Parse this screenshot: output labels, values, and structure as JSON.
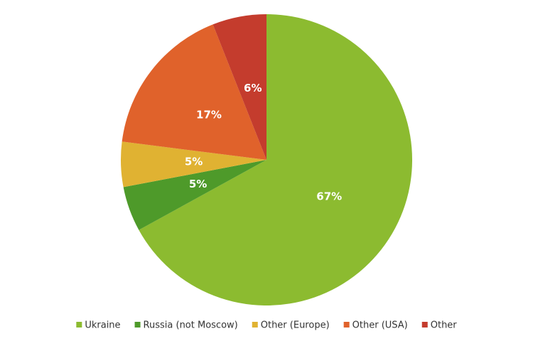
{
  "chart_data": {
    "type": "pie",
    "categories": [
      "Ukraine",
      "Russia (not Moscow)",
      "Other (Europe)",
      "Other (USA)",
      "Other"
    ],
    "values": [
      67,
      5,
      5,
      17,
      6
    ],
    "value_labels": [
      "67%",
      "5%",
      "5%",
      "17%",
      "6%"
    ],
    "colors": [
      "#8cbb30",
      "#4e9a2a",
      "#e0b232",
      "#e0622b",
      "#c43c2d"
    ],
    "legend": "bottom"
  }
}
